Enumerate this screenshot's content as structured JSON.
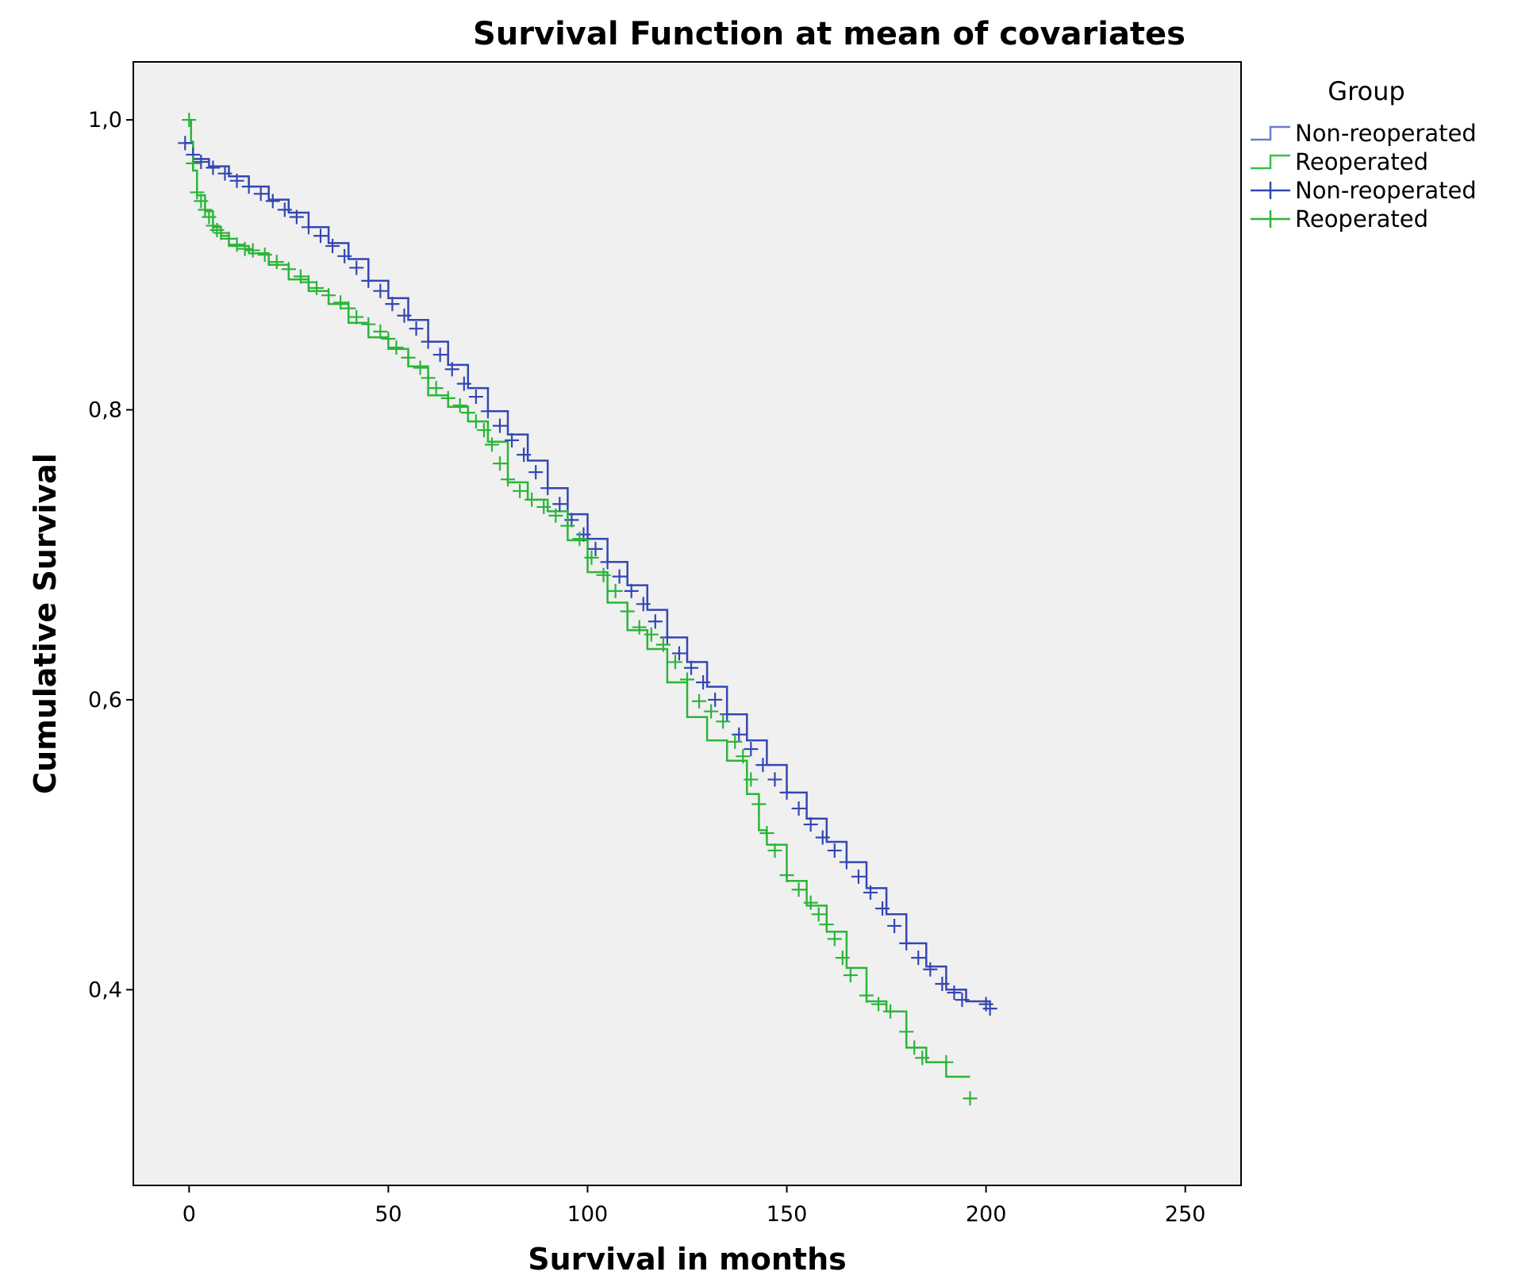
{
  "chart_data": {
    "type": "line",
    "title": "Survival Function at mean of covariates",
    "xlabel": "Survival in months",
    "ylabel": "Cumulative Survival",
    "xlim": [
      -14,
      264
    ],
    "ylim": [
      0.265,
      1.04
    ],
    "x_ticks": [
      0,
      50,
      100,
      150,
      200,
      250
    ],
    "x_tick_labels": [
      "0",
      "50",
      "100",
      "150",
      "200",
      "250"
    ],
    "y_ticks": [
      0.4,
      0.6,
      0.8,
      1.0
    ],
    "y_tick_labels": [
      "0,4",
      "0,6",
      "0,8",
      "1,0"
    ],
    "grid": false,
    "background": "#f0f0f0",
    "legend": {
      "title": "Group",
      "position": "right",
      "entries": [
        {
          "label": "Non-reoperated",
          "kind": "survival",
          "color": "#6a7bd0"
        },
        {
          "label": "Reoperated",
          "kind": "survival",
          "color": "#3cc046"
        },
        {
          "label": "Non-reoperated",
          "kind": "censored",
          "color": "#3347b3"
        },
        {
          "label": "Reoperated",
          "kind": "censored",
          "color": "#2bb539"
        }
      ]
    },
    "series": [
      {
        "name": "Non-reoperated",
        "color": "#3347b3",
        "x": [
          -1,
          1,
          5,
          10,
          15,
          20,
          25,
          30,
          35,
          40,
          45,
          50,
          55,
          60,
          65,
          70,
          75,
          80,
          85,
          90,
          95,
          100,
          105,
          110,
          115,
          120,
          125,
          130,
          135,
          140,
          145,
          150,
          155,
          160,
          165,
          170,
          175,
          180,
          185,
          190,
          195,
          201
        ],
        "y": [
          0.984,
          0.973,
          0.968,
          0.961,
          0.954,
          0.945,
          0.936,
          0.926,
          0.915,
          0.904,
          0.889,
          0.877,
          0.862,
          0.847,
          0.831,
          0.815,
          0.799,
          0.783,
          0.765,
          0.746,
          0.728,
          0.711,
          0.695,
          0.679,
          0.662,
          0.643,
          0.626,
          0.609,
          0.59,
          0.572,
          0.555,
          0.536,
          0.518,
          0.502,
          0.488,
          0.47,
          0.452,
          0.432,
          0.416,
          0.4,
          0.392,
          0.391
        ],
        "censored_x": [
          -1,
          1,
          3,
          6,
          9,
          12,
          15,
          18,
          21,
          24,
          27,
          30,
          33,
          36,
          39,
          42,
          45,
          48,
          51,
          54,
          57,
          60,
          63,
          66,
          69,
          72,
          75,
          78,
          81,
          84,
          87,
          90,
          93,
          96,
          99,
          102,
          105,
          108,
          111,
          114,
          117,
          120,
          123,
          126,
          129,
          132,
          135,
          138,
          141,
          144,
          147,
          150,
          153,
          156,
          159,
          162,
          165,
          168,
          171,
          174,
          177,
          180,
          183,
          186,
          189,
          192,
          194,
          200,
          201
        ],
        "censored_y": [
          0.984,
          0.976,
          0.971,
          0.967,
          0.963,
          0.958,
          0.954,
          0.949,
          0.944,
          0.938,
          0.933,
          0.926,
          0.92,
          0.913,
          0.906,
          0.898,
          0.889,
          0.882,
          0.873,
          0.865,
          0.856,
          0.847,
          0.838,
          0.828,
          0.818,
          0.809,
          0.799,
          0.789,
          0.779,
          0.769,
          0.757,
          0.746,
          0.735,
          0.724,
          0.714,
          0.704,
          0.695,
          0.685,
          0.675,
          0.666,
          0.654,
          0.643,
          0.632,
          0.622,
          0.612,
          0.6,
          0.59,
          0.576,
          0.566,
          0.555,
          0.545,
          0.536,
          0.525,
          0.514,
          0.505,
          0.496,
          0.488,
          0.478,
          0.467,
          0.456,
          0.444,
          0.432,
          0.422,
          0.414,
          0.404,
          0.398,
          0.393,
          0.39,
          0.387
        ]
      },
      {
        "name": "Reoperated",
        "color": "#2bb539",
        "x": [
          0,
          0.5,
          1,
          2,
          4,
          6,
          8,
          10,
          15,
          20,
          25,
          30,
          35,
          40,
          45,
          50,
          55,
          60,
          65,
          70,
          75,
          80,
          85,
          90,
          95,
          100,
          105,
          110,
          115,
          120,
          125,
          130,
          135,
          140,
          143,
          145,
          150,
          155,
          160,
          165,
          170,
          175,
          180,
          185,
          190,
          196
        ],
        "y": [
          1.0,
          0.985,
          0.965,
          0.948,
          0.937,
          0.926,
          0.92,
          0.913,
          0.908,
          0.9,
          0.89,
          0.882,
          0.873,
          0.86,
          0.85,
          0.842,
          0.83,
          0.81,
          0.802,
          0.792,
          0.778,
          0.75,
          0.738,
          0.73,
          0.71,
          0.688,
          0.667,
          0.648,
          0.635,
          0.612,
          0.588,
          0.572,
          0.558,
          0.535,
          0.51,
          0.5,
          0.475,
          0.458,
          0.44,
          0.415,
          0.392,
          0.385,
          0.36,
          0.35,
          0.34,
          0.34
        ],
        "censored_x": [
          0,
          1,
          2,
          3,
          4,
          5,
          6,
          7,
          8,
          10,
          12,
          14,
          16,
          19,
          22,
          25,
          28,
          30,
          32,
          35,
          38,
          40,
          42,
          45,
          48,
          50,
          52,
          55,
          58,
          60,
          62,
          65,
          68,
          70,
          72,
          74,
          76,
          78,
          80,
          83,
          86,
          89,
          92,
          95,
          98,
          101,
          104,
          107,
          110,
          113,
          116,
          119,
          122,
          125,
          128,
          131,
          134,
          137,
          139,
          141,
          143,
          145,
          147,
          150,
          153,
          156,
          158,
          160,
          162,
          164,
          166,
          170,
          173,
          176,
          180,
          182,
          184,
          190,
          196
        ],
        "censored_y": [
          1.0,
          0.97,
          0.95,
          0.944,
          0.938,
          0.933,
          0.927,
          0.924,
          0.922,
          0.918,
          0.914,
          0.911,
          0.91,
          0.907,
          0.902,
          0.897,
          0.892,
          0.888,
          0.884,
          0.879,
          0.874,
          0.87,
          0.864,
          0.859,
          0.854,
          0.849,
          0.843,
          0.836,
          0.829,
          0.822,
          0.815,
          0.808,
          0.803,
          0.798,
          0.792,
          0.786,
          0.776,
          0.763,
          0.752,
          0.744,
          0.738,
          0.733,
          0.727,
          0.72,
          0.711,
          0.698,
          0.686,
          0.675,
          0.661,
          0.65,
          0.645,
          0.638,
          0.626,
          0.614,
          0.599,
          0.592,
          0.585,
          0.571,
          0.561,
          0.545,
          0.528,
          0.508,
          0.496,
          0.479,
          0.469,
          0.46,
          0.452,
          0.445,
          0.435,
          0.422,
          0.41,
          0.396,
          0.39,
          0.385,
          0.371,
          0.36,
          0.353,
          0.35,
          0.325
        ]
      }
    ]
  }
}
